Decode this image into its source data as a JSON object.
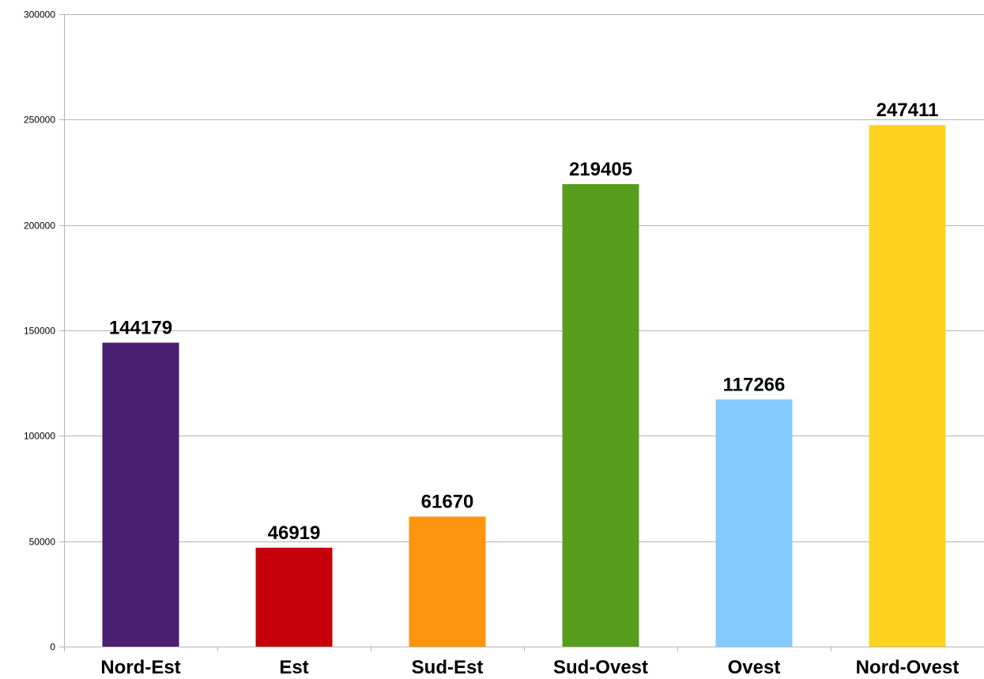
{
  "chart_data": {
    "type": "bar",
    "categories": [
      "Nord-Est",
      "Est",
      "Sud-Est",
      "Sud-Ovest",
      "Ovest",
      "Nord-Ovest"
    ],
    "values": [
      144179,
      46919,
      61670,
      219405,
      117266,
      247411
    ],
    "data_labels": [
      "144179",
      "46919",
      "61670",
      "219405",
      "117266",
      "247411"
    ],
    "colors": [
      "#4b1f6f",
      "#c5000b",
      "#ff950e",
      "#579d1c",
      "#83caff",
      "#ffd320"
    ],
    "yticks": [
      0,
      50000,
      100000,
      150000,
      200000,
      250000,
      300000
    ],
    "ytick_labels": [
      "0",
      "50000",
      "100000",
      "150000",
      "200000",
      "250000",
      "300000"
    ],
    "ylim": [
      0,
      300000
    ],
    "grid": true,
    "legend": "none"
  }
}
